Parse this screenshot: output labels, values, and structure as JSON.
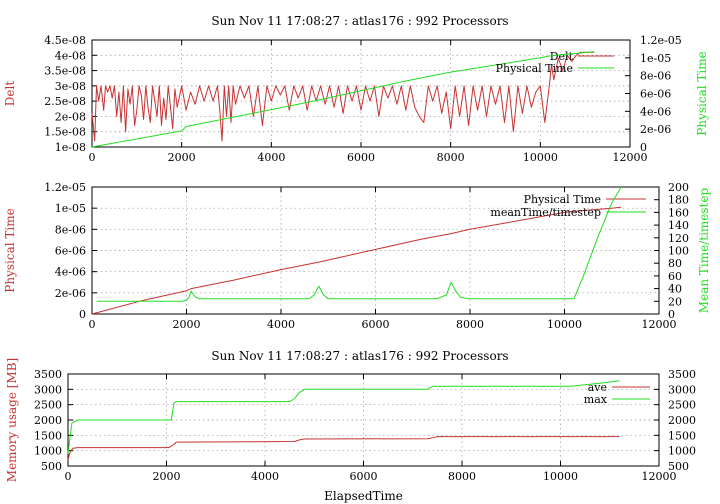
{
  "colors": {
    "red": "#c83232",
    "green": "#22dd22",
    "grid": "#9a9a9a",
    "axis": "#000000"
  },
  "chart_data": [
    {
      "type": "line",
      "title": "Sun Nov 11 17:08:27 : atlas176 : 992 Processors",
      "xlabel": "",
      "ylabel": "Delt",
      "y2label": "Physical Time",
      "xlim": [
        0,
        12000
      ],
      "ylim": [
        1e-08,
        4.5e-08
      ],
      "y2lim": [
        0,
        1.2e-05
      ],
      "xticks": [
        "0",
        "2000",
        "4000",
        "6000",
        "8000",
        "10000",
        "12000"
      ],
      "yticks": [
        "1e-08",
        "1.5e-08",
        "2e-08",
        "2.5e-08",
        "3e-08",
        "3.5e-08",
        "4e-08",
        "4.5e-08"
      ],
      "y2ticks": [
        "0",
        "2e-06",
        "4e-06",
        "6e-06",
        "8e-06",
        "1e-05",
        "1.2e-05"
      ],
      "grid": true,
      "legend": "top-right",
      "series": [
        {
          "name": "Delt",
          "axis": "y",
          "color": "#c83232",
          "x": [
            0,
            60,
            100,
            150,
            200,
            260,
            300,
            350,
            400,
            450,
            500,
            550,
            600,
            650,
            700,
            750,
            800,
            850,
            900,
            950,
            1000,
            1050,
            1100,
            1150,
            1200,
            1250,
            1300,
            1350,
            1400,
            1450,
            1500,
            1550,
            1600,
            1650,
            1700,
            1750,
            1800,
            1850,
            1900,
            2000,
            2100,
            2200,
            2300,
            2400,
            2500,
            2600,
            2700,
            2800,
            2850,
            2900,
            2950,
            3000,
            3050,
            3100,
            3150,
            3200,
            3300,
            3400,
            3500,
            3600,
            3700,
            3800,
            3900,
            4000,
            4100,
            4200,
            4300,
            4400,
            4500,
            4600,
            4700,
            4800,
            4900,
            5000,
            5100,
            5200,
            5300,
            5400,
            5500,
            5600,
            5700,
            5800,
            5900,
            6000,
            6100,
            6200,
            6300,
            6400,
            6500,
            6600,
            6700,
            6800,
            6900,
            7000,
            7100,
            7200,
            7300,
            7400,
            7500,
            7600,
            7700,
            7800,
            7900,
            8000,
            8100,
            8200,
            8300,
            8400,
            8500,
            8600,
            8700,
            8800,
            8900,
            9000,
            9100,
            9200,
            9300,
            9400,
            9500,
            9600,
            9700,
            9800,
            9900,
            10000,
            10100,
            10200,
            10250,
            10300,
            10400,
            10500,
            10600,
            10700,
            10800,
            10900,
            11000,
            11100,
            11200
          ],
          "y": [
            2.1e-08,
            1.2e-08,
            3e-08,
            2.5e-08,
            3e-08,
            2.2e-08,
            3e-08,
            2.8e-08,
            3e-08,
            2.6e-08,
            3e-08,
            2e-08,
            2.8e-08,
            1.8e-08,
            3e-08,
            1.5e-08,
            2.9e-08,
            2.4e-08,
            3e-08,
            1.7e-08,
            2.2e-08,
            3e-08,
            2.7e-08,
            1.9e-08,
            3e-08,
            2.3e-08,
            1.8e-08,
            3e-08,
            2.5e-08,
            2e-08,
            3e-08,
            1.7e-08,
            2.6e-08,
            1.9e-08,
            3e-08,
            2.3e-08,
            1.6e-08,
            2.9e-08,
            2.3e-08,
            3e-08,
            2.2e-08,
            2.8e-08,
            2.4e-08,
            3e-08,
            2.5e-08,
            3e-08,
            2.5e-08,
            3e-08,
            2.2e-08,
            1.2e-08,
            3e-08,
            2e-08,
            3e-08,
            1.8e-08,
            3e-08,
            2.4e-08,
            3e-08,
            2.6e-08,
            3e-08,
            2e-08,
            3e-08,
            1.7e-08,
            3e-08,
            2.5e-08,
            3e-08,
            2.7e-08,
            3e-08,
            2.2e-08,
            3e-08,
            2.6e-08,
            3e-08,
            2.2e-08,
            3e-08,
            2.5e-08,
            3e-08,
            2.4e-08,
            3e-08,
            2.3e-08,
            3e-08,
            2.1e-08,
            3e-08,
            2.5e-08,
            3e-08,
            2.2e-08,
            3e-08,
            2.5e-08,
            3e-08,
            2e-08,
            3e-08,
            2.6e-08,
            3e-08,
            2.4e-08,
            3e-08,
            2.2e-08,
            3e-08,
            2.3e-08,
            2e-08,
            1.8e-08,
            3e-08,
            2.5e-08,
            3e-08,
            2.1e-08,
            2.8e-08,
            1.6e-08,
            3e-08,
            2e-08,
            3e-08,
            1.7e-08,
            3e-08,
            2.2e-08,
            3e-08,
            2e-08,
            3e-08,
            2.4e-08,
            3e-08,
            1.8e-08,
            3e-08,
            1.5e-08,
            3e-08,
            2.1e-08,
            3e-08,
            2.3e-08,
            2.8e-08,
            3e-08,
            1.8e-08,
            3e-08,
            3.7e-08,
            3.2e-08,
            3.9e-08,
            3.5e-08,
            4e-08,
            3.8e-08,
            4e-08,
            4.1e-08,
            4.1e-08,
            4.1e-08,
            4.1e-08
          ]
        },
        {
          "name": "Physical Time",
          "axis": "y2",
          "color": "#22dd22",
          "x": [
            0,
            2000,
            2100,
            4000,
            5000,
            6000,
            7000,
            8000,
            9000,
            10000,
            10200,
            10800,
            11200
          ],
          "y": [
            0,
            1.8e-06,
            2.3e-06,
            4.2e-06,
            5.2e-06,
            6.3e-06,
            7.4e-06,
            8.4e-06,
            9.2e-06,
            1e-05,
            1.02e-05,
            1.05e-05,
            1.07e-05
          ]
        }
      ]
    },
    {
      "type": "line",
      "title": "",
      "xlabel": "",
      "ylabel": "Physical Time",
      "y2label": "Mean Time/timestep",
      "xlim": [
        0,
        12000
      ],
      "ylim": [
        0,
        1.2e-05
      ],
      "y2lim": [
        0,
        200
      ],
      "xticks": [
        "0",
        "2000",
        "4000",
        "6000",
        "8000",
        "10000",
        "12000"
      ],
      "yticks": [
        "0",
        "2e-06",
        "4e-06",
        "6e-06",
        "8e-06",
        "1e-05",
        "1.2e-05"
      ],
      "y2ticks": [
        "0",
        "20",
        "40",
        "60",
        "80",
        "100",
        "120",
        "140",
        "160",
        "180",
        "200"
      ],
      "grid": true,
      "legend": "top-right",
      "series": [
        {
          "name": "Physical Time",
          "axis": "y",
          "color": "#c83232",
          "x": [
            0,
            1000,
            2000,
            2100,
            3000,
            4000,
            4800,
            5000,
            6000,
            7000,
            7600,
            8000,
            9000,
            10000,
            10200,
            11000,
            11200
          ],
          "y": [
            0,
            1.2e-06,
            2.2e-06,
            2.4e-06,
            3.2e-06,
            4.2e-06,
            4.9e-06,
            5.1e-06,
            6.1e-06,
            7.1e-06,
            7.6e-06,
            8e-06,
            8.8e-06,
            9.6e-06,
            9.7e-06,
            1e-05,
            1.01e-05
          ]
        },
        {
          "name": "meanTime/timestep",
          "axis": "y2",
          "color": "#22dd22",
          "x": [
            100,
            1900,
            2000,
            2050,
            2100,
            2150,
            2200,
            2300,
            2500,
            4600,
            4700,
            4800,
            4900,
            5000,
            5200,
            7300,
            7500,
            7600,
            7700,
            7800,
            8000,
            10000,
            10200,
            10400,
            10700,
            11000,
            11200
          ],
          "y": [
            20,
            20,
            22,
            26,
            36,
            30,
            26,
            24,
            24,
            24,
            30,
            44,
            30,
            24,
            24,
            24,
            30,
            50,
            36,
            26,
            24,
            24,
            24,
            60,
            120,
            175,
            200
          ]
        }
      ]
    },
    {
      "type": "line",
      "title": "Sun Nov 11 17:08:27 : atlas176 : 992 Processors",
      "xlabel": "ElapsedTime",
      "ylabel": "Memory usage [MB]",
      "y2label": "",
      "xlim": [
        0,
        12000
      ],
      "ylim": [
        500,
        3500
      ],
      "y2lim": [
        500,
        3500
      ],
      "xticks": [
        "0",
        "2000",
        "4000",
        "6000",
        "8000",
        "10000",
        "12000"
      ],
      "yticks": [
        "500",
        "1000",
        "1500",
        "2000",
        "2500",
        "3000",
        "3500"
      ],
      "y2ticks": [
        "500",
        "1000",
        "1500",
        "2000",
        "2500",
        "3000",
        "3500"
      ],
      "grid": true,
      "legend": "top-right",
      "series": [
        {
          "name": "ave",
          "axis": "y",
          "color": "#c83232",
          "x": [
            0,
            30,
            60,
            100,
            200,
            2050,
            2150,
            2200,
            4600,
            4700,
            4800,
            7300,
            7400,
            7500,
            11200
          ],
          "y": [
            700,
            900,
            1000,
            1080,
            1100,
            1100,
            1200,
            1280,
            1300,
            1350,
            1380,
            1390,
            1420,
            1460,
            1460
          ]
        },
        {
          "name": "max",
          "axis": "y",
          "color": "#22dd22",
          "x": [
            0,
            30,
            80,
            200,
            2100,
            2150,
            2200,
            4500,
            4600,
            4700,
            4800,
            7300,
            7400,
            10200,
            10800,
            11200
          ],
          "y": [
            900,
            1300,
            1900,
            2000,
            2000,
            2550,
            2600,
            2600,
            2700,
            2900,
            3000,
            3000,
            3100,
            3100,
            3200,
            3280
          ]
        }
      ]
    }
  ]
}
